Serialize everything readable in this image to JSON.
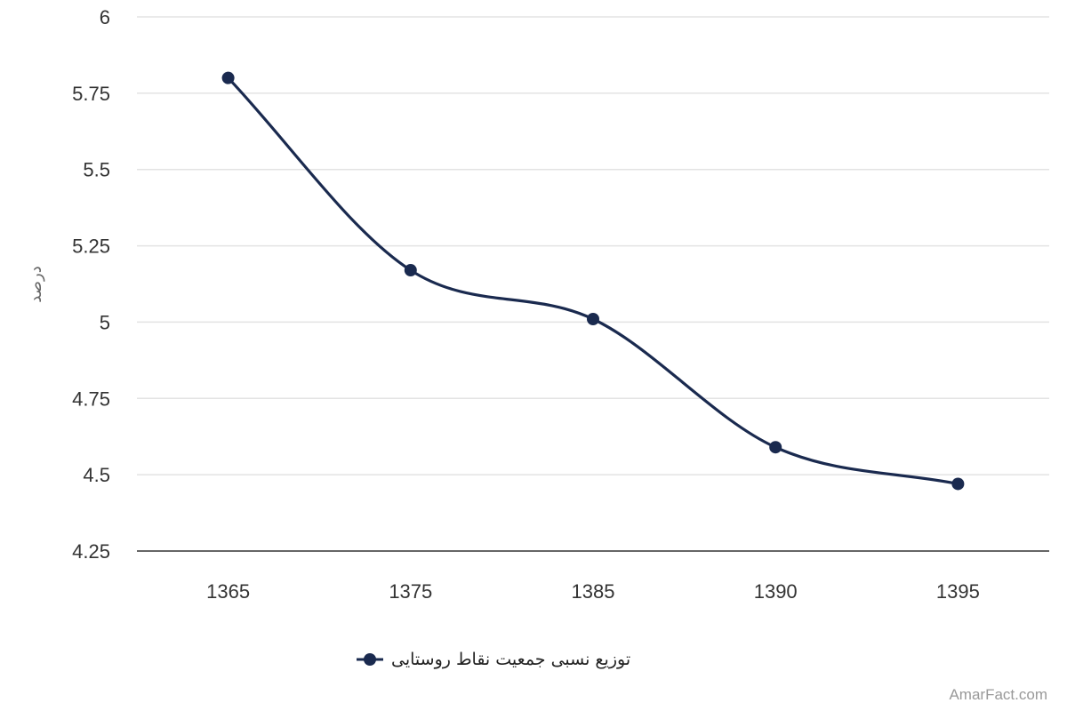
{
  "chart_data": {
    "type": "line",
    "smooth": true,
    "categories": [
      "1365",
      "1375",
      "1385",
      "1390",
      "1395"
    ],
    "series": [
      {
        "name": "توزیع نسبی جمعیت نقاط روستایی",
        "values": [
          5.8,
          5.17,
          5.01,
          4.59,
          4.47
        ],
        "color": "#1a2a4f"
      }
    ],
    "ylabel": "درصد",
    "xlabel": "",
    "ylim": [
      4.25,
      6
    ],
    "yticks": [
      "4.25",
      "4.5",
      "4.75",
      "5",
      "5.25",
      "5.5",
      "5.75",
      "6"
    ],
    "grid": true,
    "legend_position": "bottom-center"
  },
  "watermark": "AmarFact.com"
}
